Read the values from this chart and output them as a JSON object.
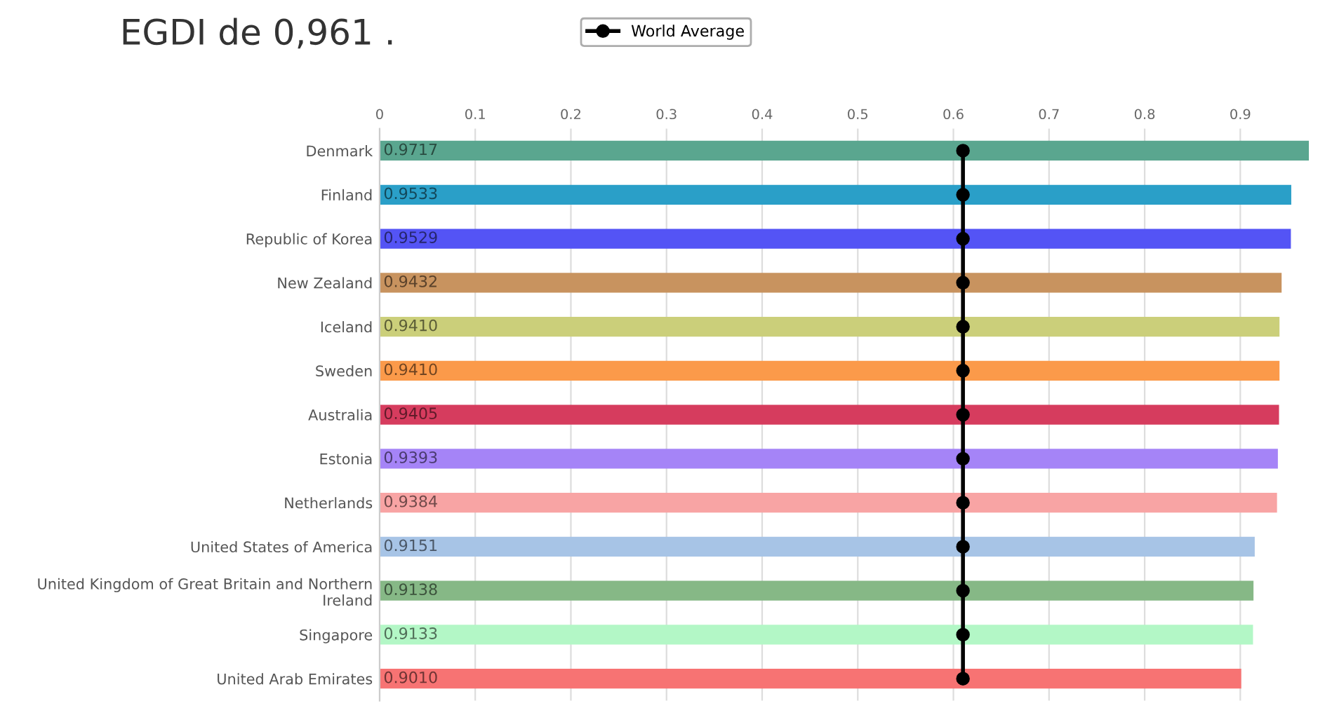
{
  "chart_data": {
    "type": "bar",
    "orientation": "horizontal",
    "title": "EGDI de 0,961 .",
    "categories": [
      "Denmark",
      "Finland",
      "Republic of Korea",
      "New Zealand",
      "Iceland",
      "Sweden",
      "Australia",
      "Estonia",
      "Netherlands",
      "United States of America",
      "United Kingdom of Great Britain and Northern Ireland",
      "Singapore",
      "United Arab Emirates"
    ],
    "series": [
      {
        "values": [
          0.9717,
          0.9533,
          0.9529,
          0.9432,
          0.941,
          0.941,
          0.9405,
          0.9393,
          0.9384,
          0.9151,
          0.9138,
          0.9133,
          0.901
        ],
        "colors": [
          "#5aa68f",
          "#2a9fc8",
          "#5454f5",
          "#c8935f",
          "#cbcf7a",
          "#fb9a4a",
          "#d63c5e",
          "#a584f7",
          "#f8a4a4",
          "#a7c4e6",
          "#86b886",
          "#b3f7c6",
          "#f77373"
        ],
        "value_labels": [
          "0.9717",
          "0.9533",
          "0.9529",
          "0.9432",
          "0.9410",
          "0.9410",
          "0.9405",
          "0.9393",
          "0.9384",
          "0.9151",
          "0.9138",
          "0.9133",
          "0.9010"
        ]
      },
      {
        "type": "line",
        "name": "World Average",
        "color": "#000000",
        "marker": "circle",
        "values": [
          0.61,
          0.61,
          0.61,
          0.61,
          0.61,
          0.61,
          0.61,
          0.61,
          0.61,
          0.61,
          0.61,
          0.61,
          0.61
        ]
      }
    ],
    "xlim": [
      0,
      0.975
    ],
    "xticks": [
      0,
      0.1,
      0.2,
      0.3,
      0.4,
      0.5,
      0.6,
      0.7,
      0.8,
      0.9
    ],
    "grid": "x",
    "legend": "top"
  }
}
